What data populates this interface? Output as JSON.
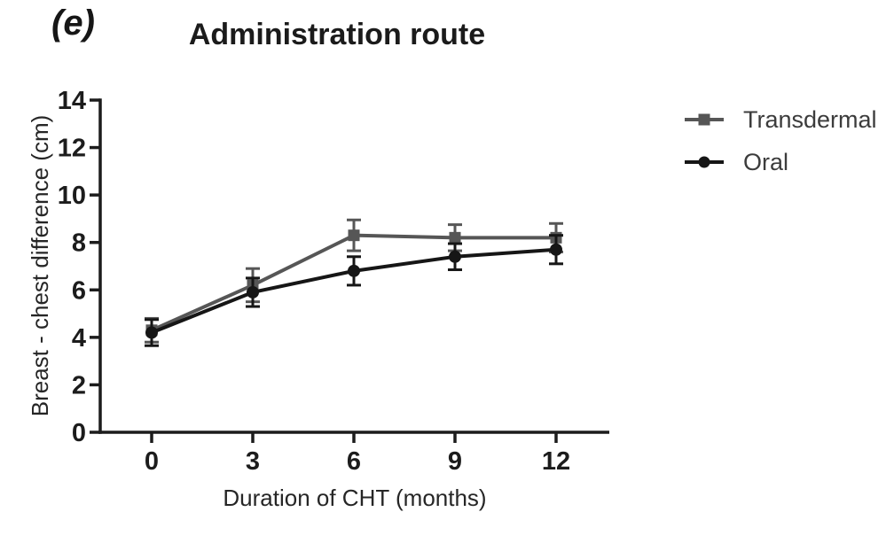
{
  "figure_label": "(e)",
  "title": "Administration route",
  "axes": {
    "x": {
      "label": "Duration of CHT (months)",
      "ticks": [
        0,
        3,
        6,
        9,
        12
      ],
      "range": [
        0,
        12
      ]
    },
    "y": {
      "label": "Breast - chest difference (cm)",
      "ticks": [
        0,
        2,
        4,
        6,
        8,
        10,
        12,
        14
      ],
      "range": [
        0,
        14
      ]
    }
  },
  "legend": [
    {
      "label": "Transdermal",
      "marker": "square",
      "color": "#565656"
    },
    {
      "label": "Oral",
      "marker": "circle",
      "color": "#161616"
    }
  ],
  "colors": {
    "axis": "#1c1c1c",
    "background": "#ffffff"
  },
  "chart_data": {
    "type": "line",
    "title": "Administration route",
    "xlabel": "Duration of CHT (months)",
    "ylabel": "Breast - chest difference (cm)",
    "x": [
      0,
      3,
      6,
      9,
      12
    ],
    "xlim": [
      0,
      12
    ],
    "ylim": [
      0,
      14
    ],
    "grid": false,
    "error_bars": true,
    "legend_position": "right",
    "series": [
      {
        "name": "Transdermal",
        "marker": "square",
        "color": "#565656",
        "values": [
          4.3,
          6.2,
          8.3,
          8.2,
          8.2
        ],
        "errors": [
          0.5,
          0.7,
          0.65,
          0.55,
          0.6
        ]
      },
      {
        "name": "Oral",
        "marker": "circle",
        "color": "#161616",
        "values": [
          4.2,
          5.9,
          6.8,
          7.4,
          7.7
        ],
        "errors": [
          0.55,
          0.6,
          0.6,
          0.55,
          0.6
        ]
      }
    ]
  }
}
